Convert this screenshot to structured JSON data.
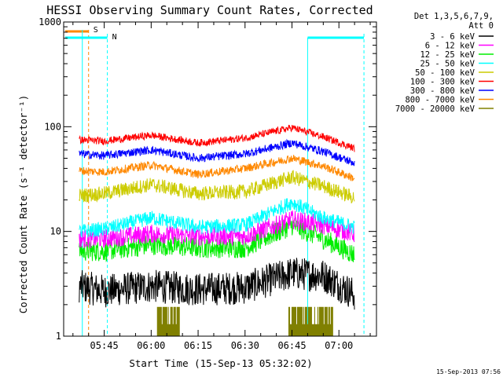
{
  "chart_data": {
    "type": "line",
    "title": "HESSI Observing Summary Count Rates, Corrected",
    "xlabel": "Start Time (15-Sep-13 05:32:02)",
    "ylabel": "Corrected Count Rate (s⁻¹ detector⁻¹)",
    "y_scale": "log",
    "ylim": [
      1,
      1000
    ],
    "xlim": [
      "05:32:02",
      "07:12:00"
    ],
    "x_ticks": [
      "05:45",
      "06:00",
      "06:15",
      "06:30",
      "06:45",
      "07:00"
    ],
    "y_ticks": [
      "1",
      "10",
      "100",
      "1000"
    ],
    "legend_title": [
      "Det 1,3,5,6,7,9,",
      "Att 0"
    ],
    "legend_position": "right",
    "series": [
      {
        "name": "3 - 6 keV",
        "color": "#000000",
        "x": [
          "05:37",
          "05:45",
          "06:00",
          "06:15",
          "06:30",
          "06:45",
          "06:55",
          "07:05"
        ],
        "values": [
          3.0,
          2.7,
          3.0,
          2.8,
          2.9,
          4.0,
          3.8,
          2.5
        ]
      },
      {
        "name": "6 - 12 keV",
        "color": "#ff00ff",
        "x": [
          "05:37",
          "05:45",
          "06:00",
          "06:15",
          "06:30",
          "06:45",
          "06:55",
          "07:05"
        ],
        "values": [
          8.5,
          8.5,
          9.5,
          9.0,
          9.0,
          13.0,
          11.5,
          9.5
        ]
      },
      {
        "name": "12 - 25 keV",
        "color": "#00ee00",
        "x": [
          "05:37",
          "05:45",
          "06:00",
          "06:15",
          "06:30",
          "06:45",
          "06:55",
          "07:05"
        ],
        "values": [
          6.5,
          6.5,
          7.5,
          7.0,
          7.0,
          11.5,
          8.5,
          6.0
        ]
      },
      {
        "name": "25 - 50 keV",
        "color": "#00ffff",
        "x": [
          "05:37",
          "05:45",
          "06:00",
          "06:15",
          "06:30",
          "06:45",
          "06:55",
          "07:05"
        ],
        "values": [
          10.0,
          10.5,
          13.5,
          11.0,
          11.5,
          19.0,
          13.5,
          11.0
        ]
      },
      {
        "name": "50 - 100 keV",
        "color": "#cccc00",
        "x": [
          "05:37",
          "05:45",
          "06:00",
          "06:15",
          "06:30",
          "06:45",
          "06:55",
          "07:05"
        ],
        "values": [
          22,
          23,
          28,
          23,
          24,
          33,
          27,
          21
        ]
      },
      {
        "name": "100 - 300 keV",
        "color": "#ff0000",
        "x": [
          "05:37",
          "05:45",
          "06:00",
          "06:15",
          "06:30",
          "06:45",
          "06:55",
          "07:05"
        ],
        "values": [
          75,
          73,
          83,
          70,
          78,
          98,
          80,
          62
        ]
      },
      {
        "name": "300 - 800 keV",
        "color": "#0000ff",
        "x": [
          "05:37",
          "05:45",
          "06:00",
          "06:15",
          "06:30",
          "06:45",
          "06:55",
          "07:05"
        ],
        "values": [
          55,
          53,
          60,
          50,
          55,
          70,
          58,
          45
        ]
      },
      {
        "name": "800 - 7000 keV",
        "color": "#ff8800",
        "x": [
          "05:37",
          "05:45",
          "06:00",
          "06:15",
          "06:30",
          "06:45",
          "06:55",
          "07:05"
        ],
        "values": [
          38,
          37,
          43,
          35,
          40,
          50,
          42,
          32
        ]
      },
      {
        "name": "7000 - 20000 keV",
        "color": "#808000",
        "x": [
          "06:02",
          "06:07",
          "06:45",
          "06:58"
        ],
        "values": [
          1.9,
          1.9,
          1.9,
          1.9
        ]
      }
    ],
    "annotations": [
      {
        "label": "S",
        "color": "#ff8800",
        "style": "dashed vertical at 05:40"
      },
      {
        "label": "N",
        "color": "#00ffff",
        "style": "dashed vertical at 05:46 and 07:08; solid vertical at 06:50"
      }
    ],
    "grid": false
  },
  "footer_timestamp": "15-Sep-2013 07:56"
}
